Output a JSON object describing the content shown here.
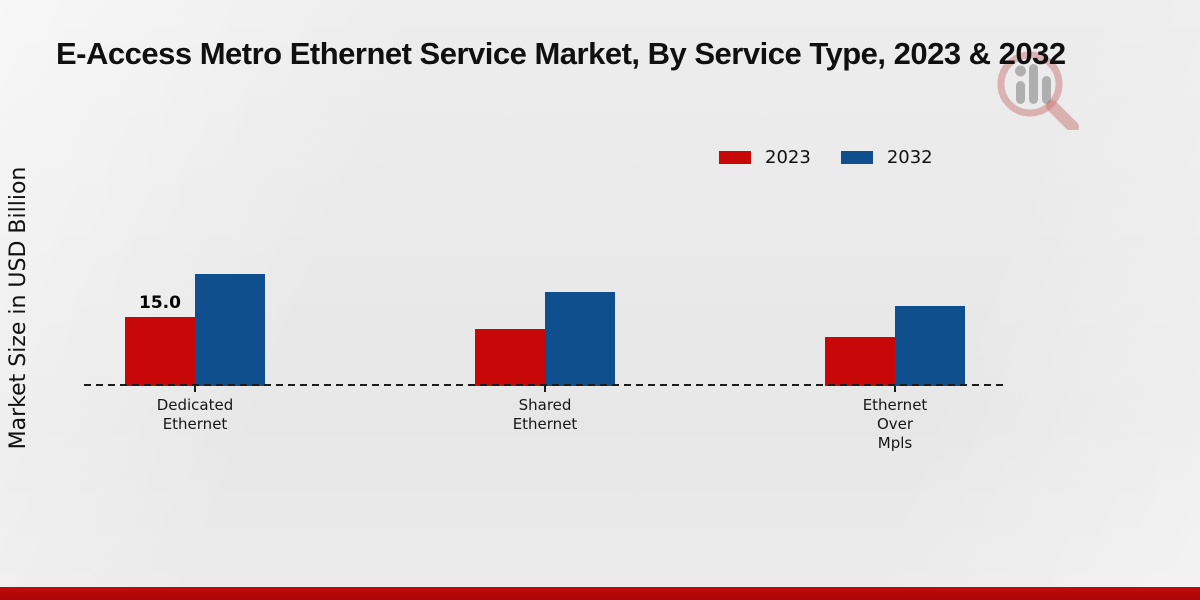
{
  "title": "E-Access Metro Ethernet Service Market, By Service Type, 2023 & 2032",
  "y_axis_label": "Market Size in USD Billion",
  "legend": {
    "items": [
      {
        "label": "2023",
        "color": "#c80808"
      },
      {
        "label": "2032",
        "color": "#0f4f8e"
      }
    ]
  },
  "chart_data": {
    "type": "bar",
    "title": "E-Access Metro Ethernet Service Market, By Service Type, 2023 & 2032",
    "xlabel": "",
    "ylabel": "Market Size in USD Billion",
    "categories": [
      "Dedicated Ethernet",
      "Shared Ethernet",
      "Ethernet Over Mpls"
    ],
    "category_label_lines": [
      [
        "Dedicated",
        "Ethernet"
      ],
      [
        "Shared",
        "Ethernet"
      ],
      [
        "Ethernet",
        "Over",
        "Mpls"
      ]
    ],
    "series": [
      {
        "name": "2023",
        "color": "#c80808",
        "values": [
          15.0,
          12.4,
          10.8
        ]
      },
      {
        "name": "2032",
        "color": "#0f4f8e",
        "values": [
          24.4,
          20.5,
          17.4
        ]
      }
    ],
    "bar_value_labels": [
      {
        "series_index": 0,
        "category_index": 0,
        "text": "15.0"
      }
    ],
    "ylim": [
      0,
      30
    ],
    "grid": false,
    "legend_position": "upper-right",
    "baseline_style": "dashed"
  },
  "branding": {
    "logo": "magnifier-bar-chart-logo",
    "footer_bar_color": "#b20a0a"
  }
}
